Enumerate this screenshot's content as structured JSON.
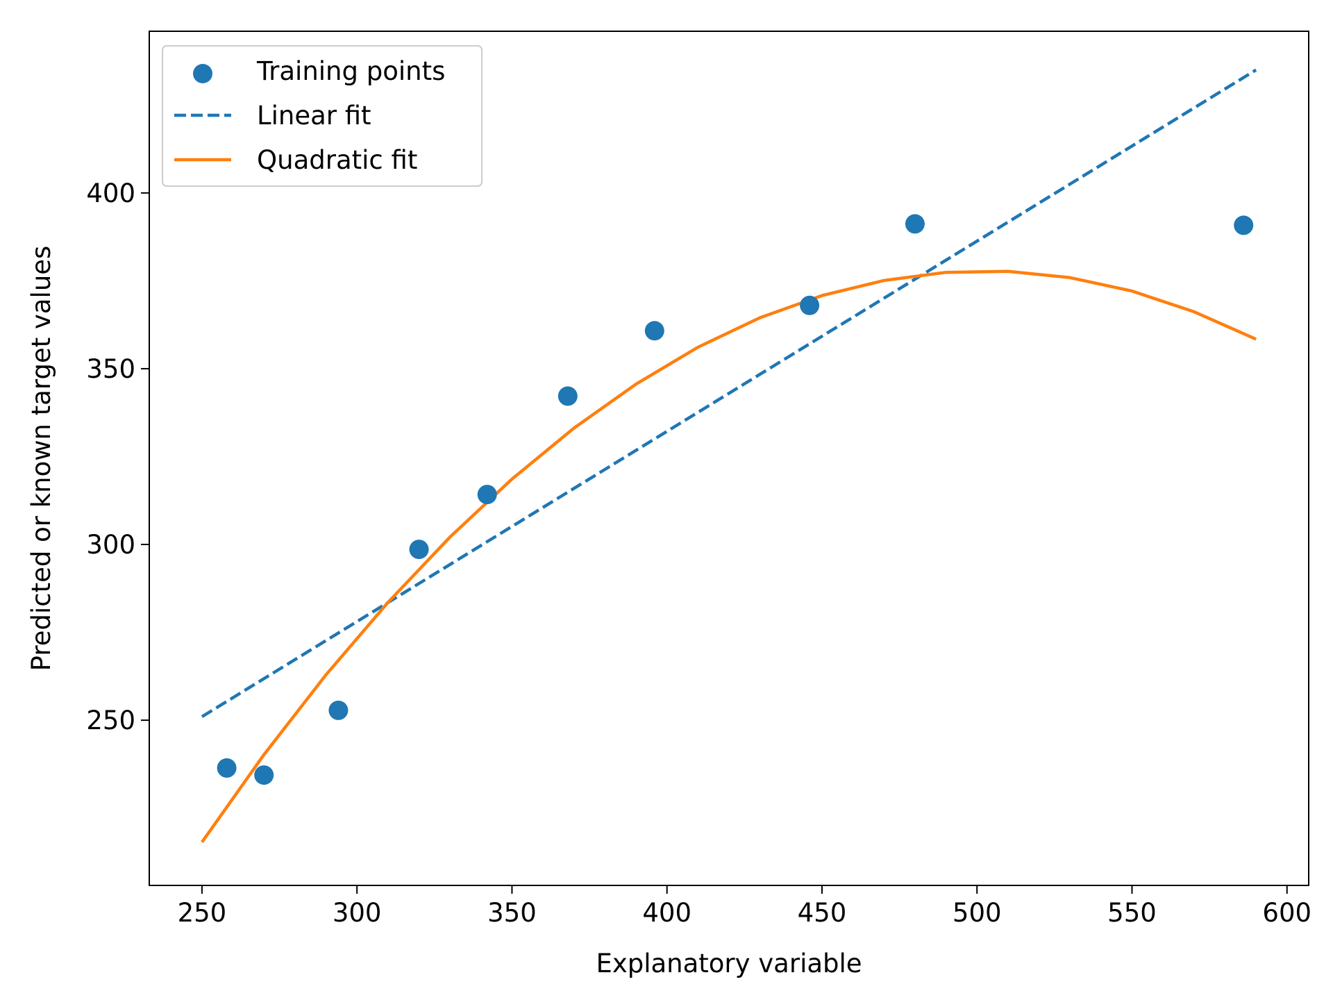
{
  "chart_data": {
    "type": "scatter",
    "title": "",
    "xlabel": "Explanatory variable",
    "ylabel": "Predicted or known target values",
    "xlim": [
      233,
      607
    ],
    "ylim": [
      203,
      446
    ],
    "xticks": [
      250,
      300,
      350,
      400,
      450,
      500,
      550,
      600
    ],
    "yticks": [
      250,
      300,
      350,
      400
    ],
    "grid": false,
    "legend_position": "top-left",
    "colors": {
      "points": "#1f77b4",
      "linear": "#1f77b4",
      "quadratic": "#ff7f0e"
    },
    "series": [
      {
        "name": "Training points",
        "kind": "scatter",
        "x": [
          258,
          270,
          294,
          320,
          342,
          368,
          396,
          446,
          480,
          586
        ],
        "y": [
          236.4,
          234.4,
          252.8,
          298.6,
          314.2,
          342.2,
          360.8,
          368.0,
          391.2,
          390.8
        ]
      },
      {
        "name": "Linear fit",
        "kind": "line",
        "style": "dashed",
        "x": [
          250,
          590
        ],
        "y": [
          251,
          435
        ]
      },
      {
        "name": "Quadratic fit",
        "kind": "line",
        "style": "solid",
        "x": [
          250,
          270,
          290,
          310,
          330,
          350,
          370,
          390,
          410,
          430,
          450,
          470,
          490,
          510,
          530,
          550,
          570,
          590
        ],
        "y": [
          215.3,
          240.2,
          262.9,
          283.5,
          302.1,
          318.6,
          333.1,
          345.6,
          356.1,
          364.5,
          370.8,
          375.1,
          377.4,
          377.7,
          375.9,
          372.1,
          366.2,
          358.4
        ]
      }
    ]
  }
}
